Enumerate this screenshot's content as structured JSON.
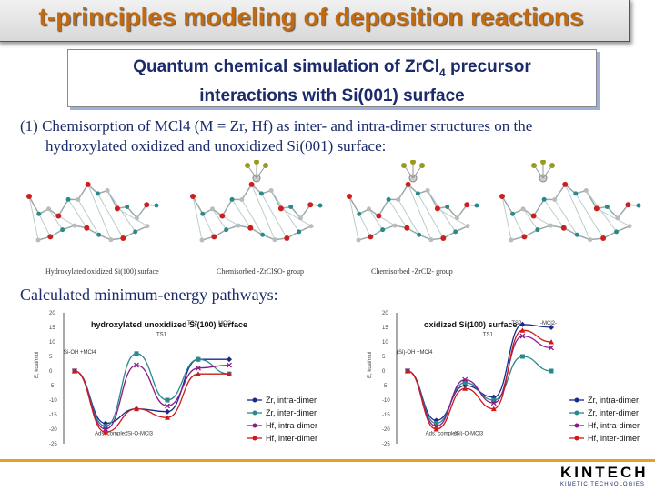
{
  "slide": {
    "title": "t-principles modeling of deposition reactions",
    "subtitle_line1": "Quantum chemical simulation of ZrCl",
    "subtitle_sub": "4",
    "subtitle_line1_end": " precursor",
    "subtitle_line2": "interactions with Si(001) surface",
    "para_line1": "(1) Chemisorption of MCl4 (M = Zr, Hf) as inter- and intra-dimer structures on the",
    "para_line2": "hydroxylated oxidized and unoxidized Si(001) surface:",
    "struct_labels": [
      "Hydroxylated oxidized Si(100) surface",
      "Chemisorbed -ZrClSO- group",
      "Chemisorbed -ZrCl2- group"
    ],
    "section2": "Calculated minimum-energy pathways:",
    "logo_text": "KINTECH",
    "logo_sub": "KINETIC TECHNOLOGIES"
  },
  "chart_data": [
    {
      "type": "line",
      "title": "hydroxylated unoxidized Si(100) surface",
      "ylabel": "E, kcal/mol",
      "ylim": [
        -25,
        20
      ],
      "yticks": [
        "20",
        "15",
        "10",
        "5",
        "0",
        "-5",
        "-10",
        "-15",
        "-20",
        "-25"
      ],
      "point_labels": [
        "Si-OH +MCl4",
        "Ads. complex",
        "(Si-O-MCl3",
        "TS1",
        "TS2",
        "MCl2"
      ],
      "series": [
        {
          "name": "Zr, intra-dimer",
          "color": "#1a2a8a",
          "marker": "diamond",
          "values": [
            0,
            -18,
            -13,
            -14,
            4,
            4
          ]
        },
        {
          "name": "Zr, inter-dimer",
          "color": "#2a8a8a",
          "marker": "square",
          "values": [
            0,
            -19,
            6,
            -10,
            4,
            -1
          ]
        },
        {
          "name": "Hf, intra-dimer",
          "color": "#8a1a8a",
          "marker": "x",
          "values": [
            0,
            -20,
            2,
            -12,
            1,
            2
          ]
        },
        {
          "name": "Hf, inter-dimer",
          "color": "#cc1a1a",
          "marker": "triangle",
          "values": [
            0,
            -21,
            -13,
            -16,
            -1,
            -1
          ]
        }
      ]
    },
    {
      "type": "line",
      "title": "oxidized Si(100) surface",
      "ylabel": "E, kcal/mol",
      "ylim": [
        -25,
        20
      ],
      "yticks": [
        "20",
        "15",
        "10",
        "5",
        "0",
        "-5",
        "-10",
        "-15",
        "-20",
        "-25"
      ],
      "point_labels": [
        "(Si)-OH +MCl4",
        "Ads. complex",
        "(Si)-O-MCl3",
        "TS1",
        "TS2",
        "-MCl2-"
      ],
      "series": [
        {
          "name": "Zr, intra-dimer",
          "color": "#1a2a8a",
          "marker": "diamond",
          "values": [
            0,
            -17,
            -5,
            -9,
            16,
            15
          ]
        },
        {
          "name": "Zr, inter-dimer",
          "color": "#2a8a8a",
          "marker": "square",
          "values": [
            0,
            -18,
            -4,
            -10,
            5,
            0
          ]
        },
        {
          "name": "Hf, intra-dimer",
          "color": "#8a1a8a",
          "marker": "x",
          "values": [
            0,
            -19,
            -3,
            -11,
            12,
            8
          ]
        },
        {
          "name": "Hf, inter-dimer",
          "color": "#cc1a1a",
          "marker": "triangle",
          "values": [
            0,
            -20,
            -6,
            -13,
            14,
            10
          ]
        }
      ]
    }
  ]
}
